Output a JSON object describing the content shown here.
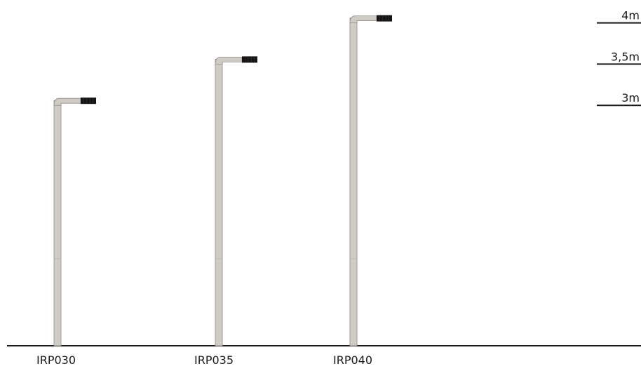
{
  "height_scale": {
    "unit": "m",
    "ground_level_m": 0,
    "levels": [
      {
        "value_m": 4,
        "label": "4m"
      },
      {
        "value_m": 3.5,
        "label": "3,5m"
      },
      {
        "value_m": 3,
        "label": "3m"
      }
    ]
  },
  "poles": [
    {
      "model": "IRP030",
      "height_m": 3
    },
    {
      "model": "IRP035",
      "height_m": 3.5
    },
    {
      "model": "IRP040",
      "height_m": 4
    }
  ],
  "colors": {
    "pole": "#cfccc5",
    "pole_edge": "#8f8c86",
    "luminaire_head": "#141414",
    "ground_line": "#1a1a1a",
    "reference_line": "#1a1a1a"
  }
}
